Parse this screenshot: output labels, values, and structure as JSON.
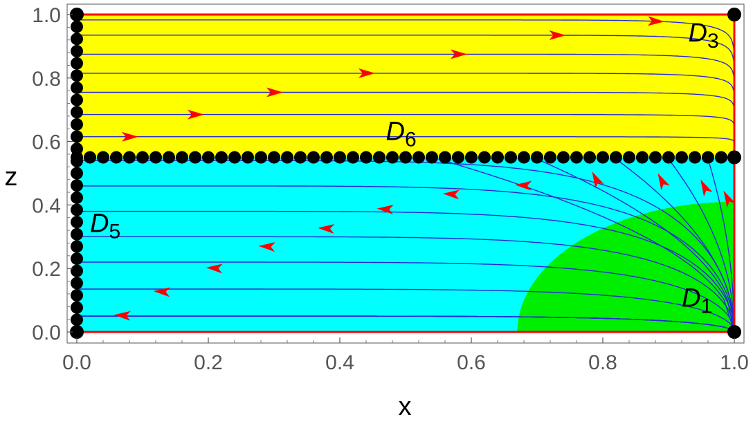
{
  "chart_data": {
    "type": "phase-portrait",
    "title": "",
    "xlabel": "x",
    "ylabel": "z",
    "xlim": [
      0,
      1
    ],
    "ylim": [
      0,
      1
    ],
    "x_ticks": [
      "0.0",
      "0.2",
      "0.4",
      "0.6",
      "0.8",
      "1.0"
    ],
    "y_ticks": [
      "0.0",
      "0.2",
      "0.4",
      "0.6",
      "0.8",
      "1.0"
    ],
    "grid": false,
    "separatrix_z": 0.55,
    "regions": [
      {
        "color": "#ffff00",
        "z_range": [
          0.55,
          1.0
        ]
      },
      {
        "color": "#00ffff",
        "z_range": [
          0.0,
          0.55
        ]
      },
      {
        "color": "#00ee00",
        "ellipse_center": [
          1.0,
          0.0
        ],
        "semi_axes": [
          0.33,
          0.41
        ]
      }
    ],
    "boundary_color": "#ff0000",
    "trajectory_color": "#2b2bd0",
    "arrow_color": "#ff0000",
    "upper_trajectories": [
      {
        "start": [
          0.0,
          0.983
        ],
        "arrow_x": 0.88
      },
      {
        "start": [
          0.0,
          0.935
        ],
        "arrow_x": 0.73
      },
      {
        "start": [
          0.0,
          0.875
        ],
        "arrow_x": 0.58
      },
      {
        "start": [
          0.0,
          0.815
        ],
        "arrow_x": 0.44
      },
      {
        "start": [
          0.0,
          0.755
        ],
        "arrow_x": 0.3
      },
      {
        "start": [
          0.0,
          0.685
        ],
        "arrow_x": 0.18
      },
      {
        "start": [
          0.0,
          0.615
        ],
        "arrow_x": 0.08
      }
    ],
    "lower_trajectories": [
      {
        "end": [
          0.0,
          0.54
        ],
        "arrow": null
      },
      {
        "end": [
          0.0,
          0.46
        ],
        "arrow": [
          0.68,
          0.462
        ]
      },
      {
        "end": [
          0.0,
          0.38
        ],
        "arrow": [
          0.57,
          0.434
        ]
      },
      {
        "end": [
          0.0,
          0.3
        ],
        "arrow": [
          0.47,
          0.387
        ]
      },
      {
        "end": [
          0.0,
          0.22
        ],
        "arrow": [
          0.38,
          0.326
        ]
      },
      {
        "end": [
          0.0,
          0.135
        ],
        "arrow": [
          0.29,
          0.269
        ]
      },
      {
        "end": [
          0.0,
          0.05
        ],
        "arrow": [
          0.21,
          0.201
        ]
      },
      {
        "end": [
          0.0,
          0.05
        ],
        "arrow": [
          0.13,
          0.127
        ]
      },
      {
        "end": [
          0.0,
          0.05
        ],
        "arrow": [
          0.07,
          0.052
        ]
      },
      {
        "end": [
          0.0,
          0.05
        ],
        "arrow": null
      }
    ],
    "fan_arrows": [
      [
        0.79,
        0.48
      ],
      [
        0.89,
        0.475
      ],
      [
        0.955,
        0.455
      ],
      [
        0.99,
        0.42
      ]
    ],
    "fixed_points": [
      [
        0.0,
        0.0
      ],
      [
        1.0,
        0.0
      ],
      [
        0.0,
        1.0
      ],
      [
        1.0,
        1.0
      ],
      [
        1.0,
        0.55
      ]
    ],
    "fixed_lines": [
      {
        "orientation": "vertical",
        "x": 0.0,
        "z_range": [
          0.0,
          1.0
        ],
        "count": 27
      },
      {
        "orientation": "horizontal",
        "z": 0.55,
        "x_range": [
          0.0,
          1.0
        ],
        "count": 51
      }
    ],
    "annotations": [
      {
        "text": "D",
        "sub": "3",
        "at": [
          0.93,
          0.915
        ]
      },
      {
        "text": "D",
        "sub": "6",
        "at": [
          0.47,
          0.605
        ]
      },
      {
        "text": "D",
        "sub": "5",
        "at": [
          0.02,
          0.315
        ]
      },
      {
        "text": "D",
        "sub": "1",
        "at": [
          0.92,
          0.08
        ]
      }
    ]
  }
}
